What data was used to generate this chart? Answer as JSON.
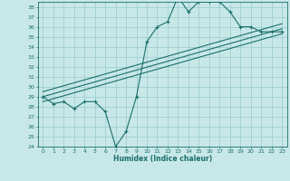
{
  "bg_color": "#c8e8e8",
  "grid_color": "#a0d0d0",
  "line_color": "#1a6e6a",
  "xlabel": "Humidex (Indice chaleur)",
  "xlim": [
    -0.5,
    23.5
  ],
  "ylim": [
    24,
    38.5
  ],
  "yticks": [
    24,
    25,
    26,
    27,
    28,
    29,
    30,
    31,
    32,
    33,
    34,
    35,
    36,
    37,
    38
  ],
  "xticks": [
    0,
    1,
    2,
    3,
    4,
    5,
    6,
    7,
    8,
    9,
    10,
    11,
    12,
    13,
    14,
    15,
    16,
    17,
    18,
    19,
    20,
    21,
    22,
    23
  ],
  "series_zigzag_x": [
    0,
    1,
    2,
    3,
    4,
    5,
    6,
    7,
    8,
    9,
    10,
    11,
    12,
    13,
    14,
    15,
    16,
    17,
    18,
    19,
    20,
    21,
    22,
    23
  ],
  "series_zigzag_y": [
    29.0,
    28.3,
    28.5,
    27.8,
    28.5,
    28.5,
    27.5,
    24.0,
    25.5,
    29.0,
    34.5,
    36.0,
    36.5,
    39.0,
    37.5,
    38.5,
    38.5,
    38.5,
    37.5,
    36.0,
    36.0,
    35.5,
    35.5,
    35.5
  ],
  "line1_x": [
    0,
    23
  ],
  "line1_y": [
    29.5,
    36.3
  ],
  "line2_x": [
    0,
    23
  ],
  "line2_y": [
    29.0,
    35.8
  ],
  "line3_x": [
    0,
    23
  ],
  "line3_y": [
    28.5,
    35.3
  ]
}
